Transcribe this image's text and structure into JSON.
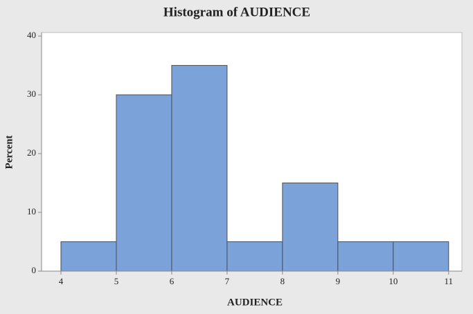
{
  "chart_data": {
    "type": "histogram",
    "title": "Histogram of AUDIENCE",
    "x_label": "AUDIENCE",
    "y_label": "Percent",
    "bins": [
      4,
      5,
      6,
      7,
      8,
      9,
      10,
      11
    ],
    "values": [
      5,
      30,
      35,
      5,
      15,
      5,
      5
    ],
    "color": "#7ba3d9",
    "edge_color": "#4d4d4d",
    "xlim": [
      3.65,
      11.24
    ],
    "xticks": [
      4,
      5,
      6,
      7,
      8,
      9,
      10,
      11
    ],
    "ylim": [
      0,
      40.6
    ],
    "yticks": [
      0,
      10,
      20,
      30,
      40
    ]
  }
}
